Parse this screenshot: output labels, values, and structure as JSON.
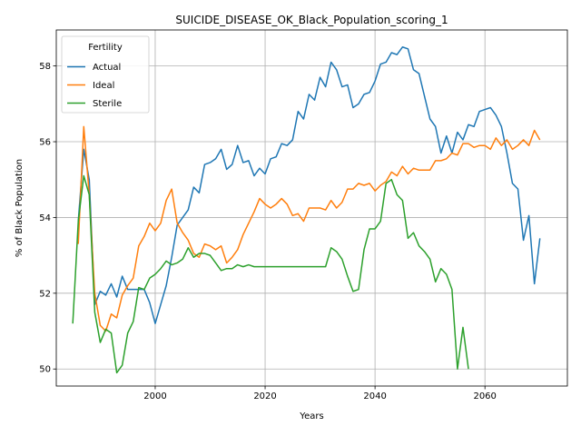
{
  "chart_data": {
    "type": "line",
    "title": "SUICIDE_DISEASE_OK_Black_Population_scoring_1",
    "xlabel": "Years",
    "ylabel": "% of Black Population",
    "xlim": [
      1982,
      2075
    ],
    "ylim": [
      49.55,
      58.95
    ],
    "xticks": [
      2000,
      2020,
      2040,
      2060
    ],
    "yticks": [
      50,
      52,
      54,
      56,
      58
    ],
    "grid": true,
    "legend": {
      "title": "Fertility",
      "placement": "top-left"
    },
    "series": [
      {
        "name": "Actual",
        "color": "#1f77b4",
        "x": [
          1986,
          1987,
          1988,
          1989,
          1990,
          1991,
          1992,
          1993,
          1994,
          1995,
          1996,
          1997,
          1998,
          1999,
          2000,
          2001,
          2002,
          2003,
          2004,
          2005,
          2006,
          2007,
          2008,
          2009,
          2010,
          2011,
          2012,
          2013,
          2014,
          2015,
          2016,
          2017,
          2018,
          2019,
          2020,
          2021,
          2022,
          2023,
          2024,
          2025,
          2026,
          2027,
          2028,
          2029,
          2030,
          2031,
          2032,
          2033,
          2034,
          2035,
          2036,
          2037,
          2038,
          2039,
          2040,
          2041,
          2042,
          2043,
          2044,
          2045,
          2046,
          2047,
          2048,
          2049,
          2050,
          2051,
          2052,
          2053,
          2054,
          2055,
          2056,
          2057,
          2058,
          2059,
          2060,
          2061,
          2062,
          2063,
          2064,
          2065,
          2066,
          2067,
          2068,
          2069,
          2070
        ],
        "y": [
          53.9,
          55.8,
          55.0,
          51.7,
          52.05,
          51.95,
          52.25,
          51.9,
          52.45,
          52.1,
          52.1,
          52.1,
          52.1,
          51.75,
          51.2,
          51.7,
          52.2,
          52.95,
          53.8,
          54.0,
          54.2,
          54.8,
          54.65,
          55.4,
          55.45,
          55.55,
          55.8,
          55.27,
          55.4,
          55.9,
          55.45,
          55.5,
          55.1,
          55.3,
          55.15,
          55.55,
          55.6,
          55.95,
          55.9,
          56.05,
          56.8,
          56.6,
          57.25,
          57.1,
          57.7,
          57.45,
          58.1,
          57.9,
          57.45,
          57.5,
          56.9,
          57.0,
          57.25,
          57.3,
          57.6,
          58.05,
          58.1,
          58.35,
          58.3,
          58.5,
          58.45,
          57.9,
          57.8,
          57.2,
          56.6,
          56.4,
          55.7,
          56.15,
          55.7,
          56.25,
          56.05,
          56.45,
          56.4,
          56.8,
          56.85,
          56.9,
          56.7,
          56.4,
          55.7,
          54.9,
          54.75,
          53.4,
          54.05,
          52.25,
          53.45
        ]
      },
      {
        "name": "Ideal",
        "color": "#ff7f0e",
        "x": [
          1986,
          1987,
          1988,
          1989,
          1990,
          1991,
          1992,
          1993,
          1994,
          1995,
          1996,
          1997,
          1998,
          1999,
          2000,
          2001,
          2002,
          2003,
          2004,
          2005,
          2006,
          2007,
          2008,
          2009,
          2010,
          2011,
          2012,
          2013,
          2014,
          2015,
          2016,
          2017,
          2018,
          2019,
          2020,
          2021,
          2022,
          2023,
          2024,
          2025,
          2026,
          2027,
          2028,
          2029,
          2030,
          2031,
          2032,
          2033,
          2034,
          2035,
          2036,
          2037,
          2038,
          2039,
          2040,
          2041,
          2042,
          2043,
          2044,
          2045,
          2046,
          2047,
          2048,
          2049,
          2050,
          2051,
          2052,
          2053,
          2054,
          2055,
          2056,
          2057,
          2058,
          2059,
          2060,
          2061,
          2062,
          2063,
          2064,
          2065,
          2066,
          2067,
          2068,
          2069,
          2070
        ],
        "y": [
          53.3,
          56.4,
          54.6,
          52.0,
          51.15,
          51.0,
          51.45,
          51.35,
          51.95,
          52.2,
          52.4,
          53.25,
          53.5,
          53.85,
          53.65,
          53.85,
          54.45,
          54.75,
          53.85,
          53.6,
          53.4,
          53.05,
          52.95,
          53.3,
          53.25,
          53.15,
          53.25,
          52.8,
          52.95,
          53.15,
          53.55,
          53.85,
          54.15,
          54.5,
          54.35,
          54.25,
          54.35,
          54.5,
          54.35,
          54.05,
          54.1,
          53.9,
          54.25,
          54.25,
          54.25,
          54.2,
          54.45,
          54.25,
          54.4,
          54.75,
          54.75,
          54.9,
          54.85,
          54.9,
          54.7,
          54.85,
          54.95,
          55.2,
          55.1,
          55.35,
          55.15,
          55.3,
          55.25,
          55.25,
          55.25,
          55.5,
          55.5,
          55.55,
          55.7,
          55.65,
          55.95,
          55.95,
          55.85,
          55.9,
          55.9,
          55.8,
          56.1,
          55.9,
          56.05,
          55.8,
          55.9,
          56.05,
          55.9,
          56.3,
          56.05
        ]
      },
      {
        "name": "Sterile",
        "color": "#2ca02c",
        "x": [
          1985,
          1986,
          1987,
          1988,
          1989,
          1990,
          1991,
          1992,
          1993,
          1994,
          1995,
          1996,
          1997,
          1998,
          1999,
          2000,
          2001,
          2002,
          2003,
          2004,
          2005,
          2006,
          2007,
          2008,
          2009,
          2010,
          2011,
          2012,
          2013,
          2014,
          2015,
          2016,
          2017,
          2018,
          2019,
          2020,
          2021,
          2022,
          2023,
          2024,
          2025,
          2026,
          2027,
          2028,
          2029,
          2030,
          2031,
          2032,
          2033,
          2034,
          2035,
          2036,
          2037,
          2038,
          2039,
          2040,
          2041,
          2042,
          2043,
          2044,
          2045,
          2046,
          2047,
          2048,
          2049,
          2050,
          2051,
          2052,
          2053,
          2054,
          2055,
          2056,
          2057
        ],
        "y": [
          51.2,
          53.9,
          55.1,
          54.6,
          51.5,
          50.7,
          51.05,
          50.95,
          49.9,
          50.1,
          50.95,
          51.25,
          52.15,
          52.1,
          52.4,
          52.5,
          52.65,
          52.85,
          52.75,
          52.8,
          52.9,
          53.2,
          52.95,
          53.05,
          53.05,
          53.0,
          52.8,
          52.6,
          52.65,
          52.65,
          52.75,
          52.7,
          52.75,
          52.7,
          52.7,
          52.7,
          52.7,
          52.7,
          52.7,
          52.7,
          52.7,
          52.7,
          52.7,
          52.7,
          52.7,
          52.7,
          52.7,
          53.2,
          53.1,
          52.9,
          52.45,
          52.05,
          52.1,
          53.15,
          53.7,
          53.7,
          53.9,
          54.9,
          55.0,
          54.6,
          54.45,
          53.45,
          53.6,
          53.25,
          53.1,
          52.9,
          52.3,
          52.65,
          52.5,
          52.1,
          50.0,
          51.1,
          50.0
        ]
      }
    ]
  }
}
